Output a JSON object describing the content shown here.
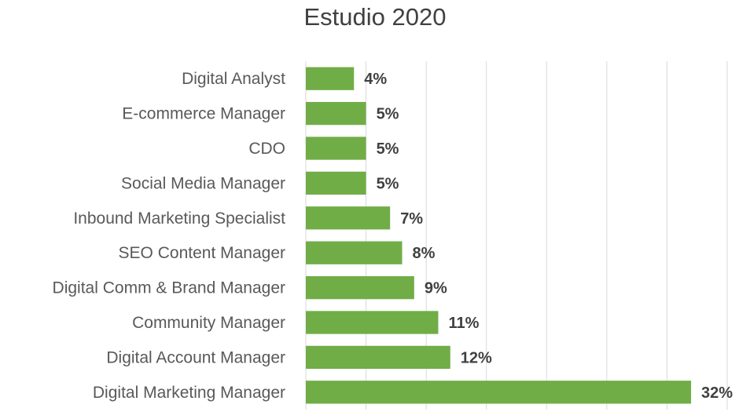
{
  "chart_data": {
    "type": "bar",
    "orientation": "horizontal",
    "title": "Estudio 2020",
    "categories": [
      "Digital Analyst",
      "E-commerce Manager",
      "CDO",
      "Social Media Manager",
      "Inbound Marketing Specialist",
      "SEO Content Manager",
      "Digital Comm & Brand Manager",
      "Community Manager",
      "Digital Account Manager",
      "Digital Marketing Manager"
    ],
    "values": [
      4,
      5,
      5,
      5,
      7,
      8,
      9,
      11,
      12,
      32
    ],
    "value_labels": [
      "4%",
      "5%",
      "5%",
      "5%",
      "7%",
      "8%",
      "9%",
      "11%",
      "12%",
      "32%"
    ],
    "xlabel": "",
    "ylabel": "",
    "xlim": [
      0,
      35
    ],
    "grid": true,
    "bar_color": "#70ad47",
    "grid_color": "#d9d9d9"
  }
}
